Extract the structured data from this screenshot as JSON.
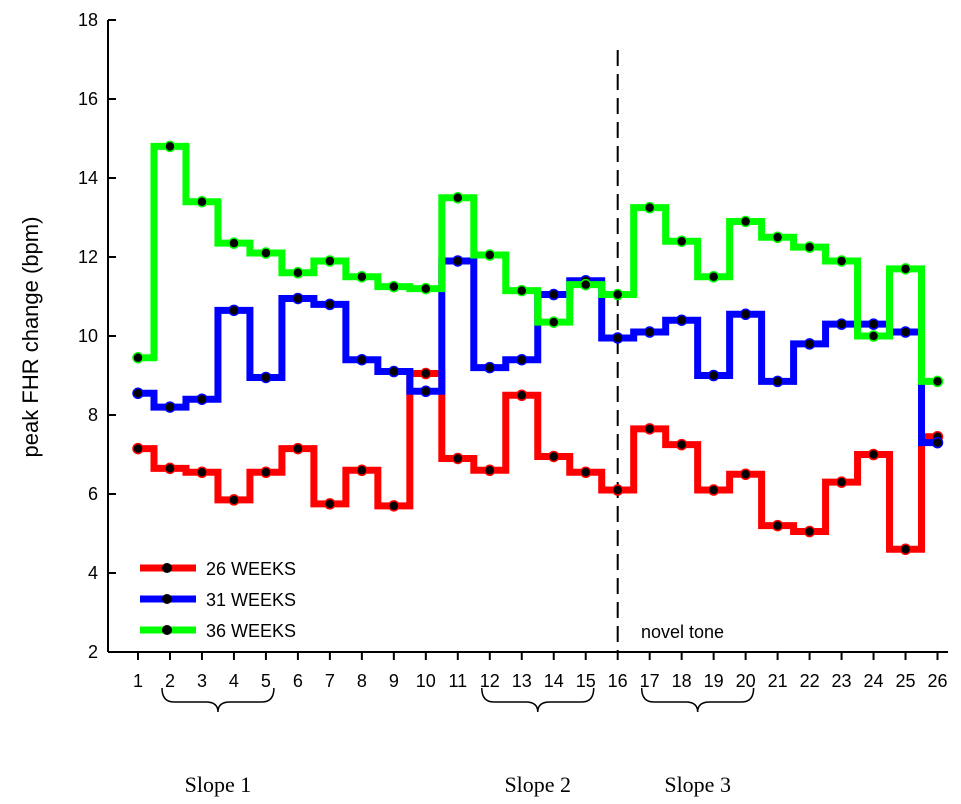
{
  "chart_data": {
    "type": "line",
    "ylabel": "peak FHR change (bpm)",
    "xlabel": "",
    "ylim": [
      2,
      18
    ],
    "yticks": [
      "2",
      "4",
      "6",
      "8",
      "10",
      "12",
      "14",
      "16",
      "18"
    ],
    "x": [
      1,
      2,
      3,
      4,
      5,
      6,
      7,
      8,
      9,
      10,
      11,
      12,
      13,
      14,
      15,
      16,
      17,
      18,
      19,
      20,
      21,
      22,
      23,
      24,
      25,
      26
    ],
    "xtick_labels": [
      "1",
      "2",
      "3",
      "4",
      "5",
      "6",
      "7",
      "8",
      "9",
      "10",
      "11",
      "12",
      "13",
      "14",
      "15",
      "16",
      "17",
      "18",
      "19",
      "20",
      "21",
      "22",
      "23",
      "24",
      "25",
      "26"
    ],
    "step": true,
    "series": [
      {
        "name": "26 WEEKS",
        "color": "#ff0000",
        "values": [
          7.15,
          6.65,
          6.55,
          5.85,
          6.55,
          7.15,
          5.75,
          6.6,
          5.7,
          9.05,
          6.9,
          6.6,
          8.5,
          6.95,
          6.55,
          6.1,
          7.65,
          7.25,
          6.1,
          6.5,
          5.2,
          5.05,
          6.3,
          7.0,
          4.6,
          7.45
        ]
      },
      {
        "name": "31 WEEKS",
        "color": "#0000ff",
        "values": [
          8.55,
          8.2,
          8.4,
          10.65,
          8.95,
          10.95,
          10.8,
          9.4,
          9.1,
          8.6,
          11.9,
          9.2,
          9.4,
          11.05,
          11.4,
          9.95,
          10.1,
          10.4,
          9.0,
          10.55,
          8.85,
          9.8,
          10.3,
          10.3,
          10.1,
          7.3
        ]
      },
      {
        "name": "36 WEEKS",
        "color": "#00ff00",
        "values": [
          9.45,
          14.8,
          13.4,
          12.35,
          12.1,
          11.6,
          11.9,
          11.5,
          11.25,
          11.2,
          13.5,
          12.05,
          11.15,
          10.35,
          11.3,
          11.05,
          13.25,
          12.4,
          11.5,
          12.9,
          12.5,
          12.25,
          11.9,
          10.0,
          11.7,
          8.85
        ]
      }
    ],
    "vline": {
      "x": 16
    },
    "annotation": "novel tone",
    "legend": "bottom-left",
    "grid": false,
    "brackets": [
      {
        "label": "Slope 1",
        "from": 2,
        "to": 5
      },
      {
        "label": "Slope 2",
        "from": 12,
        "to": 15
      },
      {
        "label": "Slope 3",
        "from": 17,
        "to": 20
      }
    ]
  }
}
